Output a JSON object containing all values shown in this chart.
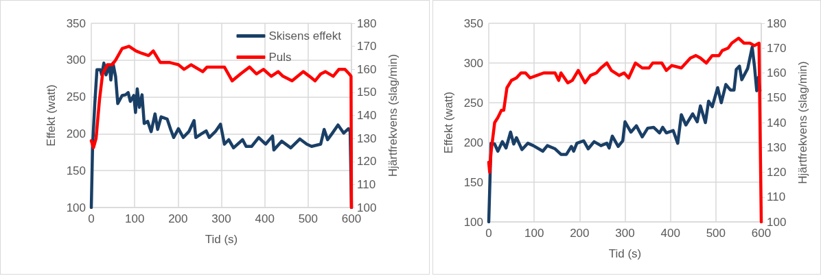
{
  "chart_data": [
    {
      "type": "line",
      "xlabel": "Tid (s)",
      "ylabel": "Effekt (watt)",
      "y2label": "Hjärtfrekvens (slag/min)",
      "xlim": [
        0,
        600
      ],
      "xticks": [
        0,
        100,
        200,
        300,
        400,
        500,
        600
      ],
      "ylim": [
        100,
        350
      ],
      "yticks": [
        100,
        150,
        200,
        250,
        300,
        350
      ],
      "y2lim": [
        100,
        180
      ],
      "y2ticks": [
        100,
        110,
        120,
        130,
        140,
        150,
        160,
        170,
        180
      ],
      "grid": true,
      "legend": "top right",
      "series": [
        {
          "name": "Skisens effekt",
          "color": "#1a3f66",
          "x": [
            0,
            3,
            8,
            13,
            21,
            24,
            29,
            34,
            42,
            45,
            50,
            56,
            61,
            71,
            79,
            85,
            90,
            98,
            102,
            106,
            111,
            117,
            122,
            130,
            138,
            147,
            153,
            161,
            175,
            183,
            190,
            201,
            212,
            225,
            237,
            241,
            254,
            265,
            272,
            286,
            298,
            307,
            317,
            328,
            349,
            357,
            370,
            386,
            402,
            418,
            421,
            439,
            460,
            481,
            497,
            508,
            529,
            537,
            545,
            556,
            569,
            582,
            593,
            597,
            600
          ],
          "values": [
            100,
            184,
            240,
            287,
            287,
            280,
            296,
            280,
            293,
            273,
            296,
            278,
            241,
            252,
            253,
            256,
            244,
            252,
            229,
            261,
            236,
            253,
            214,
            217,
            203,
            227,
            206,
            223,
            220,
            206,
            195,
            207,
            195,
            203,
            218,
            195,
            200,
            204,
            195,
            203,
            213,
            186,
            192,
            181,
            192,
            183,
            183,
            195,
            186,
            197,
            178,
            190,
            181,
            193,
            186,
            183,
            186,
            206,
            192,
            201,
            212,
            201,
            207,
            203,
            100
          ]
        },
        {
          "name": "Puls",
          "color": "#ff0000",
          "axis": "y2",
          "x": [
            0,
            5,
            11,
            19,
            26,
            37,
            48,
            56,
            71,
            87,
            103,
            116,
            132,
            143,
            159,
            180,
            201,
            214,
            230,
            257,
            267,
            307,
            325,
            344,
            365,
            381,
            397,
            415,
            431,
            442,
            463,
            489,
            503,
            516,
            529,
            540,
            558,
            571,
            585,
            595,
            599,
            600
          ],
          "values": [
            129,
            126,
            130,
            147,
            158,
            162,
            162,
            164,
            169,
            170,
            168,
            167,
            166,
            168,
            163,
            163,
            162,
            160,
            162,
            159,
            161,
            161,
            155,
            158,
            161,
            158,
            160,
            157,
            159,
            157,
            155,
            159,
            157,
            155,
            158,
            159,
            157,
            160,
            160,
            158,
            157,
            100
          ]
        }
      ]
    },
    {
      "type": "line",
      "xlabel": "Tid (s)",
      "ylabel": "Effekt (watt)",
      "y2label": "Hjärtfrekvens (slag/min)",
      "xlim": [
        0,
        600
      ],
      "xticks": [
        0,
        100,
        200,
        300,
        400,
        500,
        600
      ],
      "ylim": [
        100,
        350
      ],
      "yticks": [
        100,
        150,
        200,
        250,
        300,
        350
      ],
      "y2lim": [
        100,
        180
      ],
      "y2ticks": [
        100,
        110,
        120,
        130,
        140,
        150,
        160,
        170,
        180
      ],
      "grid": true,
      "series": [
        {
          "color": "#1a3f66",
          "x": [
            0,
            5,
            13,
            20,
            30,
            38,
            48,
            55,
            61,
            73,
            86,
            98,
            119,
            129,
            146,
            159,
            171,
            182,
            187,
            194,
            209,
            219,
            232,
            247,
            260,
            265,
            272,
            285,
            295,
            300,
            313,
            325,
            338,
            350,
            363,
            376,
            383,
            391,
            406,
            416,
            424,
            434,
            449,
            459,
            466,
            477,
            484,
            492,
            504,
            512,
            522,
            532,
            540,
            545,
            552,
            557,
            570,
            580,
            585,
            590,
            594,
            597
          ],
          "values": [
            100,
            199,
            198,
            189,
            201,
            193,
            213,
            198,
            206,
            191,
            199,
            196,
            189,
            196,
            192,
            185,
            185,
            195,
            189,
            199,
            202,
            192,
            201,
            196,
            199,
            193,
            208,
            195,
            202,
            226,
            213,
            221,
            207,
            218,
            219,
            212,
            219,
            212,
            215,
            199,
            235,
            222,
            236,
            226,
            246,
            225,
            252,
            245,
            269,
            250,
            273,
            266,
            266,
            292,
            296,
            279,
            293,
            320,
            296,
            265,
            282,
            265
          ]
        },
        {
          "color": "#ff0000",
          "axis": "y2",
          "x": [
            0,
            2,
            5,
            13,
            20,
            28,
            33,
            40,
            50,
            61,
            71,
            81,
            91,
            106,
            121,
            146,
            154,
            159,
            174,
            184,
            197,
            212,
            224,
            237,
            247,
            260,
            270,
            287,
            298,
            308,
            323,
            338,
            353,
            361,
            381,
            391,
            403,
            424,
            444,
            456,
            466,
            479,
            492,
            507,
            514,
            527,
            535,
            550,
            562,
            575,
            585,
            595,
            600
          ],
          "values": [
            124,
            120,
            128,
            140,
            142,
            145,
            145,
            154,
            157,
            158,
            160,
            160,
            158,
            159,
            160,
            160,
            157,
            160,
            156,
            157,
            161,
            156,
            159,
            160,
            162,
            164,
            161,
            159,
            160,
            158,
            164,
            162,
            162,
            164,
            164,
            161,
            163,
            162,
            166,
            167,
            166,
            164,
            167,
            167,
            169,
            170,
            172,
            174,
            172,
            172,
            171,
            172,
            100
          ]
        }
      ]
    }
  ]
}
